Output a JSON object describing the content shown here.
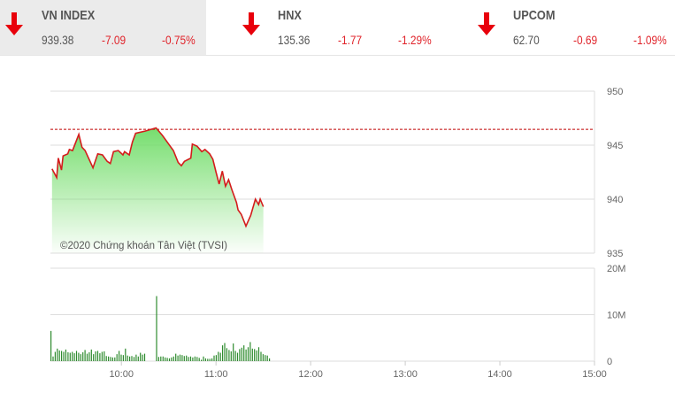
{
  "tickers": [
    {
      "name": "VN INDEX",
      "value": "939.38",
      "change": "-7.09",
      "pct": "-0.75%",
      "direction": "down",
      "active": true
    },
    {
      "name": "HNX",
      "value": "135.36",
      "change": "-1.77",
      "pct": "-1.29%",
      "direction": "down",
      "active": false
    },
    {
      "name": "UPCOM",
      "value": "62.70",
      "change": "-0.69",
      "pct": "-1.09%",
      "direction": "down",
      "active": false
    }
  ],
  "colors": {
    "down": "#e0242b",
    "line": "#d41c1c",
    "fill": "#7fe07a",
    "volume": "#2e8b2e",
    "reference": "#c00000"
  },
  "watermark": "©2020 Chứng khoán Tân Việt (TVSI)",
  "chart_data": {
    "type": "line",
    "price": {
      "ylim": [
        935,
        950
      ],
      "yticks": [
        "950",
        "945",
        "940",
        "935"
      ],
      "reference": 946.47,
      "points": [
        [
          "9:16",
          942.8
        ],
        [
          "9:19",
          942.0
        ],
        [
          "9:20",
          943.8
        ],
        [
          "9:22",
          942.7
        ],
        [
          "9:23",
          944.0
        ],
        [
          "9:26",
          944.2
        ],
        [
          "9:27",
          944.6
        ],
        [
          "9:29",
          944.5
        ],
        [
          "9:33",
          946.0
        ],
        [
          "9:35",
          944.8
        ],
        [
          "9:37",
          944.5
        ],
        [
          "9:42",
          942.9
        ],
        [
          "9:45",
          944.2
        ],
        [
          "9:48",
          944.1
        ],
        [
          "9:51",
          943.5
        ],
        [
          "9:53",
          943.3
        ],
        [
          "9:55",
          944.4
        ],
        [
          "9:58",
          944.5
        ],
        [
          "10:01",
          944.1
        ],
        [
          "10:02",
          944.4
        ],
        [
          "10:05",
          944.1
        ],
        [
          "10:07",
          945.3
        ],
        [
          "10:09",
          946.1
        ],
        [
          "10:15",
          946.3
        ],
        [
          "10:22",
          946.6
        ],
        [
          "10:26",
          945.9
        ],
        [
          "10:30",
          945.1
        ],
        [
          "10:33",
          944.5
        ],
        [
          "10:36",
          943.4
        ],
        [
          "10:38",
          943.1
        ],
        [
          "10:40",
          943.5
        ],
        [
          "10:44",
          943.8
        ],
        [
          "10:45",
          945.1
        ],
        [
          "10:48",
          944.9
        ],
        [
          "10:51",
          944.4
        ],
        [
          "10:53",
          944.6
        ],
        [
          "10:56",
          944.2
        ],
        [
          "10:58",
          943.7
        ],
        [
          "11:00",
          942.5
        ],
        [
          "11:02",
          941.4
        ],
        [
          "11:04",
          942.6
        ],
        [
          "11:06",
          941.2
        ],
        [
          "11:08",
          941.8
        ],
        [
          "11:10",
          940.9
        ],
        [
          "11:13",
          939.7
        ],
        [
          "11:14",
          939.0
        ],
        [
          "11:16",
          938.6
        ],
        [
          "11:19",
          937.5
        ],
        [
          "11:22",
          938.5
        ],
        [
          "11:25",
          940.0
        ],
        [
          "11:27",
          939.5
        ],
        [
          "11:28",
          940.0
        ],
        [
          "11:30",
          939.3
        ]
      ]
    },
    "volume": {
      "ylim": [
        0,
        20
      ],
      "yticks": [
        "20M",
        "10M",
        "0"
      ],
      "segments": [
        {
          "start": "9:15",
          "values_millions": [
            6.5,
            1.0,
            2.0,
            2.7,
            2.3,
            2.2,
            2.0,
            2.5,
            1.9,
            1.8,
            2.0,
            1.7,
            2.2,
            1.8,
            1.5,
            1.9,
            2.4,
            1.6,
            1.9,
            2.5,
            1.5,
            2.1,
            2.2,
            1.7,
            2.0,
            2.1,
            1.1,
            1.0,
            0.9,
            0.8,
            0.8,
            1.5,
            2.2,
            1.4,
            1.3,
            2.7,
            1.2,
            1.0,
            1.1,
            0.9,
            1.4,
            1.0,
            1.8,
            1.4,
            1.6
          ]
        },
        {
          "start": "10:22",
          "values_millions": [
            14,
            0.9,
            1.0,
            1.0,
            0.8,
            0.7,
            0.6,
            0.8,
            1.0,
            1.6,
            1.2,
            1.4,
            1.3,
            1.1,
            1.2,
            0.9,
            1.0,
            0.8,
            1.0,
            0.9,
            0.7,
            0.3,
            1.0,
            0.6,
            0.5,
            0.5,
            0.6,
            1.2,
            1.3,
            2.0,
            1.8,
            3.4,
            3.9,
            2.8,
            2.4,
            2.1,
            3.8,
            2.2,
            1.8,
            2.6,
            2.9,
            3.4,
            2.5,
            3.0,
            4.1,
            2.7,
            2.6,
            2.3,
            3.0,
            2.0,
            1.5,
            1.3,
            1.2,
            0.6
          ]
        }
      ]
    },
    "xlim": [
      "9:15",
      "15:00"
    ],
    "xticks": [
      "10:00",
      "11:00",
      "12:00",
      "13:00",
      "14:00",
      "15:00"
    ]
  }
}
